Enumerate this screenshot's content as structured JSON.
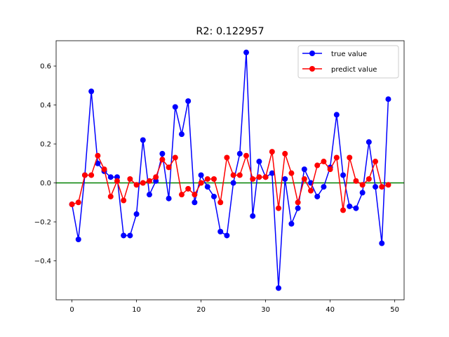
{
  "chart_data": {
    "type": "line",
    "title": "R2: 0.122957",
    "xlabel": "",
    "ylabel": "",
    "xlim": [
      -2.45,
      51.45
    ],
    "ylim": [
      -0.6,
      0.73
    ],
    "x_ticks": [
      0,
      10,
      20,
      30,
      40,
      50
    ],
    "y_ticks": [
      -0.4,
      -0.2,
      0.0,
      0.2,
      0.4,
      0.6
    ],
    "x_tick_labels": [
      "0",
      "10",
      "20",
      "30",
      "40",
      "50"
    ],
    "y_tick_labels": [
      "−0.4",
      "−0.2",
      "0.0",
      "0.2",
      "0.4",
      "0.6"
    ],
    "grid": false,
    "legend_position": "top-right",
    "reference_line": {
      "y": 0.0,
      "color": "#008000"
    },
    "x": [
      0,
      1,
      2,
      3,
      4,
      5,
      6,
      7,
      8,
      9,
      10,
      11,
      12,
      13,
      14,
      15,
      16,
      17,
      18,
      19,
      20,
      21,
      22,
      23,
      24,
      25,
      26,
      27,
      28,
      29,
      30,
      31,
      32,
      33,
      34,
      35,
      36,
      37,
      38,
      39,
      40,
      41,
      42,
      43,
      44,
      45,
      46,
      47,
      48,
      49
    ],
    "series": [
      {
        "name": "true value",
        "color": "#0000ff",
        "values": [
          -0.11,
          -0.29,
          0.04,
          0.47,
          0.1,
          0.06,
          0.03,
          0.03,
          -0.27,
          -0.27,
          -0.16,
          0.22,
          -0.06,
          0.01,
          0.15,
          -0.08,
          0.39,
          0.25,
          0.42,
          -0.1,
          0.04,
          -0.02,
          -0.07,
          -0.25,
          -0.27,
          0.0,
          0.15,
          0.67,
          -0.17,
          0.11,
          0.03,
          0.05,
          -0.54,
          0.02,
          -0.21,
          -0.13,
          0.07,
          0.0,
          -0.07,
          -0.02,
          0.08,
          0.35,
          0.04,
          -0.12,
          -0.13,
          -0.05,
          0.21,
          -0.02,
          -0.31,
          0.43
        ]
      },
      {
        "name": "predict value",
        "color": "#ff0000",
        "values": [
          -0.11,
          -0.1,
          0.04,
          0.04,
          0.14,
          0.07,
          -0.07,
          0.01,
          -0.09,
          0.02,
          -0.01,
          0.0,
          0.01,
          0.03,
          0.12,
          0.08,
          0.13,
          -0.06,
          -0.03,
          -0.06,
          0.0,
          0.02,
          0.02,
          -0.1,
          0.13,
          0.04,
          0.04,
          0.14,
          0.02,
          0.03,
          0.03,
          0.16,
          -0.13,
          0.15,
          0.05,
          -0.1,
          0.02,
          -0.04,
          0.09,
          0.11,
          0.07,
          0.13,
          -0.14,
          0.13,
          0.01,
          -0.01,
          0.02,
          0.11,
          -0.02,
          -0.01
        ]
      }
    ]
  }
}
